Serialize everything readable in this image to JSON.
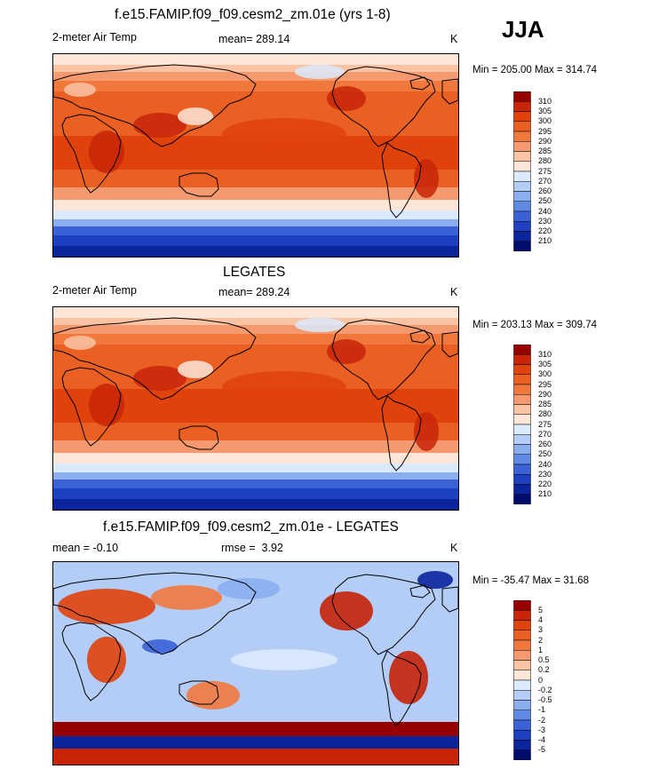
{
  "season": "JJA",
  "units": "K",
  "panels": [
    {
      "title": "f.e15.FAMIP.f09_f09.cesm2_zm.01e (yrs 1-8)",
      "variable": "2-meter Air Temp",
      "stat_label": "mean=",
      "stat_value": "289.14",
      "extra_label": "",
      "extra_value": "",
      "units": "K",
      "minmax": "Min = 205.00 Max = 314.74",
      "type": "absolute"
    },
    {
      "title": "LEGATES",
      "variable": "2-meter Air Temp",
      "stat_label": "mean=",
      "stat_value": "289.24",
      "extra_label": "",
      "extra_value": "",
      "units": "K",
      "minmax": "Min = 203.13 Max = 309.74",
      "type": "absolute"
    },
    {
      "title": "f.e15.FAMIP.f09_f09.cesm2_zm.01e - LEGATES",
      "variable": "",
      "stat_label": "mean =",
      "stat_value": "-0.10",
      "extra_label": "rmse =",
      "extra_value": "3.92",
      "units": "K",
      "minmax": "Min = -35.47 Max =  31.68",
      "type": "difference"
    }
  ],
  "colorbars": {
    "absolute": {
      "labels": [
        "310",
        "305",
        "300",
        "295",
        "290",
        "285",
        "280",
        "275",
        "270",
        "260",
        "250",
        "240",
        "230",
        "220",
        "210"
      ],
      "colors": [
        "#960000",
        "#c72408",
        "#e0420c",
        "#ea5f22",
        "#f1783d",
        "#f59a6e",
        "#f9c3a4",
        "#fde5d8",
        "#dbeafe",
        "#b4cdf7",
        "#8aaef0",
        "#6088e5",
        "#3a62d6",
        "#1c40bf",
        "#0a249c",
        "#020d6b"
      ]
    },
    "difference": {
      "labels": [
        "5",
        "4",
        "3",
        "2",
        "1",
        "0.5",
        "0.2",
        "0",
        "-0.2",
        "-0.5",
        "-1",
        "-2",
        "-3",
        "-4",
        "-5"
      ],
      "colors": [
        "#960000",
        "#c72408",
        "#e0420c",
        "#ea5f22",
        "#f1783d",
        "#f59a6e",
        "#f9c3a4",
        "#fde5d8",
        "#dbeafe",
        "#b4cdf7",
        "#8aaef0",
        "#6088e5",
        "#3a62d6",
        "#1c40bf",
        "#0a249c",
        "#020d6b"
      ]
    }
  },
  "chart_data": [
    {
      "type": "heatmap",
      "title": "f.e15.FAMIP.f09_f09.cesm2_zm.01e (yrs 1-8)",
      "variable": "2-meter Air Temp",
      "units": "K",
      "mean": 289.14,
      "min": 205.0,
      "max": 314.74,
      "contour_levels": [
        210,
        220,
        230,
        240,
        250,
        260,
        270,
        275,
        280,
        285,
        290,
        295,
        300,
        305,
        310
      ]
    },
    {
      "type": "heatmap",
      "title": "LEGATES",
      "variable": "2-meter Air Temp",
      "units": "K",
      "mean": 289.24,
      "min": 203.13,
      "max": 309.74,
      "contour_levels": [
        210,
        220,
        230,
        240,
        250,
        260,
        270,
        275,
        280,
        285,
        290,
        295,
        300,
        305,
        310
      ]
    },
    {
      "type": "heatmap",
      "title": "f.e15.FAMIP.f09_f09.cesm2_zm.01e - LEGATES",
      "units": "K",
      "mean": -0.1,
      "rmse": 3.92,
      "min": -35.47,
      "max": 31.68,
      "contour_levels": [
        -5,
        -4,
        -3,
        -2,
        -1,
        -0.5,
        -0.2,
        0,
        0.2,
        0.5,
        1,
        2,
        3,
        4,
        5
      ]
    }
  ]
}
